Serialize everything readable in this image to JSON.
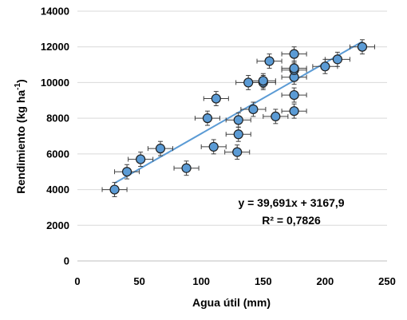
{
  "chart_data": {
    "type": "scatter",
    "title": "",
    "xlabel": "Agua útil (mm)",
    "ylabel_main": "Rendimiento (kg ha",
    "ylabel_sup": "-1",
    "ylabel_close": ")",
    "xlim": [
      0,
      250
    ],
    "ylim": [
      0,
      14000
    ],
    "xticks": [
      0,
      50,
      100,
      150,
      200,
      250
    ],
    "xtick_labels": [
      "0",
      "50",
      "100",
      "150",
      "200",
      "250"
    ],
    "yticks": [
      0,
      2000,
      4000,
      6000,
      8000,
      10000,
      12000,
      14000
    ],
    "ytick_labels": [
      "0",
      "2000",
      "4000",
      "6000",
      "8000",
      "10000",
      "12000",
      "14000"
    ],
    "grid": "horizontal",
    "legend": "none",
    "series": [
      {
        "points": [
          {
            "x": 30,
            "y": 4000
          },
          {
            "x": 40,
            "y": 5000
          },
          {
            "x": 51,
            "y": 5700
          },
          {
            "x": 67,
            "y": 6300
          },
          {
            "x": 88,
            "y": 5200
          },
          {
            "x": 105,
            "y": 8000
          },
          {
            "x": 110,
            "y": 6400
          },
          {
            "x": 112,
            "y": 9100
          },
          {
            "x": 129,
            "y": 6100
          },
          {
            "x": 130,
            "y": 7100
          },
          {
            "x": 130,
            "y": 7900
          },
          {
            "x": 138,
            "y": 10000
          },
          {
            "x": 142,
            "y": 8500
          },
          {
            "x": 150,
            "y": 10000
          },
          {
            "x": 150,
            "y": 10100
          },
          {
            "x": 155,
            "y": 11200
          },
          {
            "x": 160,
            "y": 8100
          },
          {
            "x": 175,
            "y": 8400
          },
          {
            "x": 175,
            "y": 9300
          },
          {
            "x": 175,
            "y": 10300
          },
          {
            "x": 175,
            "y": 10700
          },
          {
            "x": 175,
            "y": 10800
          },
          {
            "x": 175,
            "y": 11600
          },
          {
            "x": 200,
            "y": 10900
          },
          {
            "x": 210,
            "y": 11300
          },
          {
            "x": 230,
            "y": 12000
          }
        ],
        "x_error": 10,
        "y_error": 400
      }
    ],
    "trendline": {
      "slope": 39.691,
      "intercept": 3167.9,
      "x_range": [
        30,
        230
      ]
    },
    "annotations": {
      "equation": "y = 39,691x + 3167,9",
      "r2_prefix": "R² = ",
      "r2_value": "0,7826"
    },
    "colors": {
      "marker_fill": "#5b9bd5",
      "marker_stroke": "#1f1f1f",
      "trendline": "#5b9bd5",
      "error_bar": "#404040",
      "gridline": "#d9d9d9",
      "axis": "#bfbfbf"
    }
  }
}
